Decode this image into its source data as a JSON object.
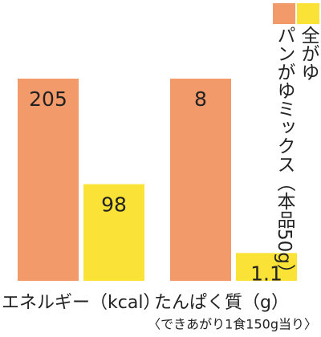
{
  "legend": [
    {
      "name": "パンがゆミックス（本品50g）",
      "color": "#f39a6b"
    },
    {
      "name": "全がゆ",
      "color": "#fbe236"
    }
  ],
  "chart_data": [
    {
      "type": "bar",
      "xlabel": "エネルギー（kcal）",
      "ylim": [
        0,
        205
      ],
      "series": [
        {
          "color": "#f39a6b",
          "values": [
            205
          ]
        },
        {
          "color": "#fbe236",
          "values": [
            98
          ]
        }
      ]
    },
    {
      "type": "bar",
      "xlabel": "たんぱく質（g）",
      "ylim": [
        0,
        8
      ],
      "series": [
        {
          "color": "#f39a6b",
          "values": [
            8
          ]
        },
        {
          "color": "#fbe236",
          "values": [
            1.1
          ]
        }
      ]
    }
  ],
  "note": "〈できあがり1食150g当り〉"
}
